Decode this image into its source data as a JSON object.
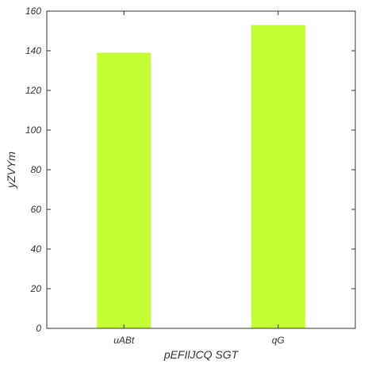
{
  "chart_data": {
    "type": "bar",
    "title": "",
    "xlabel": "pEFIlJCQ SGT",
    "ylabel": "yZVYm",
    "categories": [
      "uABt",
      "qG"
    ],
    "values": [
      139,
      153
    ],
    "ylim": [
      0,
      160
    ],
    "yticks": [
      0,
      20,
      40,
      60,
      80,
      100,
      120,
      140,
      160
    ],
    "bar_color": "#c3ff33",
    "grid": false,
    "legend": "none"
  }
}
